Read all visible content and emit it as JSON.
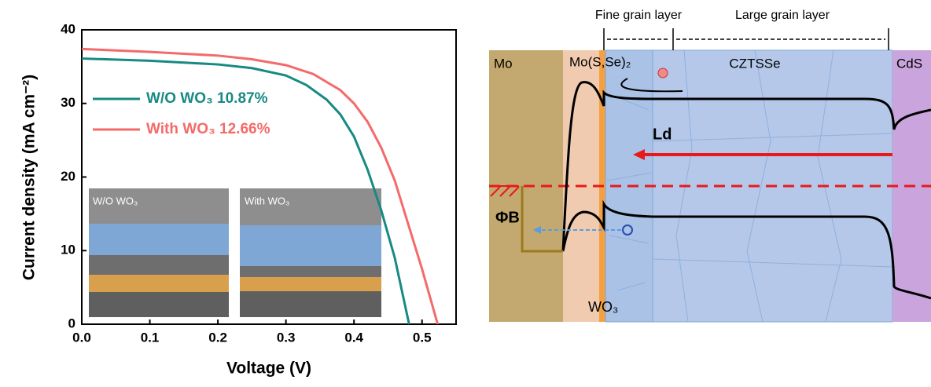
{
  "chart_data": {
    "type": "line",
    "xlabel": "Voltage (V)",
    "ylabel": "Current density (mA cm⁻²)",
    "xlim": [
      0,
      0.55
    ],
    "ylim": [
      0,
      40
    ],
    "xticks": [
      {
        "value": 0,
        "label": "0.0"
      },
      0.1,
      0.2,
      0.3,
      0.4,
      0.5
    ],
    "yticks": [
      0,
      10,
      20,
      30,
      40
    ],
    "series": [
      {
        "name": "W/O WO₃ 10.87%",
        "color": "#178a82",
        "x": [
          0,
          0.1,
          0.2,
          0.25,
          0.3,
          0.33,
          0.36,
          0.38,
          0.4,
          0.42,
          0.44,
          0.46,
          0.481
        ],
        "values": [
          36.1,
          35.8,
          35.3,
          34.8,
          33.8,
          32.5,
          30.5,
          28.5,
          25.5,
          21,
          15.5,
          9,
          0
        ]
      },
      {
        "name": "With WO₃ 12.66%",
        "color": "#f46a6a",
        "x": [
          0,
          0.1,
          0.2,
          0.25,
          0.3,
          0.34,
          0.38,
          0.4,
          0.42,
          0.44,
          0.46,
          0.48,
          0.5,
          0.523
        ],
        "values": [
          37.4,
          37.0,
          36.5,
          36.0,
          35.2,
          34,
          31.8,
          30,
          27.5,
          24,
          19.5,
          13.5,
          7.5,
          0
        ]
      }
    ],
    "inset_labels": [
      "W/O WO₃",
      "With WO₃"
    ]
  },
  "diagram": {
    "fine_grain": "Fine grain layer",
    "large_grain": "Large grain layer",
    "mo": "Mo",
    "moSSe": "Mo(S,Se)₂",
    "czts": "CZTSSe",
    "cds": "CdS",
    "ld": "Ld",
    "phi": "ΦB",
    "wo3": "WO₃"
  }
}
